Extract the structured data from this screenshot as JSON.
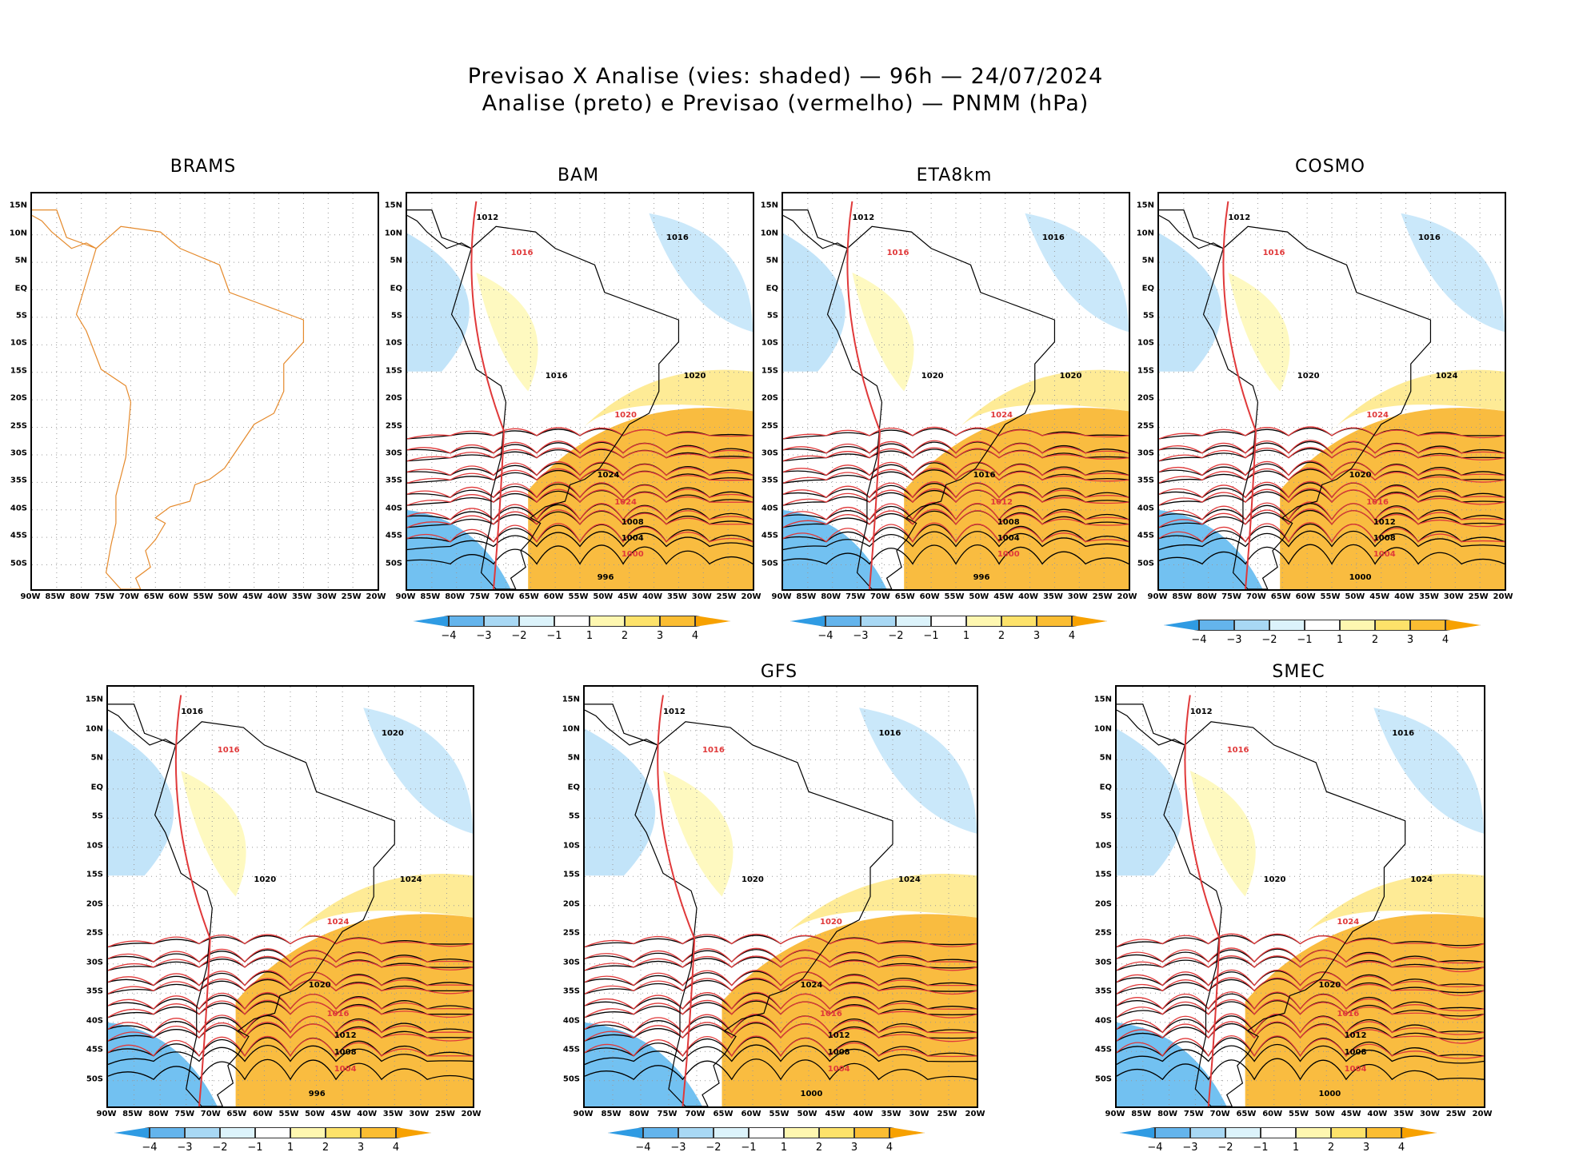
{
  "title": {
    "line1": "Previsao X Analise (vies: shaded) — 96h — 24/07/2024",
    "line2": "Analise (preto) e Previsao (vermelho) — PNMM (hPa)"
  },
  "axes": {
    "lat_labels": [
      "15N",
      "10N",
      "5N",
      "EQ",
      "5S",
      "10S",
      "15S",
      "20S",
      "25S",
      "30S",
      "35S",
      "40S",
      "45S",
      "50S"
    ],
    "lon_labels": [
      "90W",
      "85W",
      "80W",
      "75W",
      "70W",
      "65W",
      "60W",
      "55W",
      "50W",
      "45W",
      "40W",
      "35W",
      "30W",
      "25W",
      "20W"
    ]
  },
  "colorbar": {
    "labels": [
      "−4",
      "−3",
      "−2",
      "−1",
      "1",
      "2",
      "3",
      "4"
    ],
    "colors": [
      "#2f9be3",
      "#64b4ec",
      "#a8d8f4",
      "#dcf3fb",
      "#ffffff",
      "#fef7b0",
      "#fde26a",
      "#fbbd32",
      "#f7a100"
    ]
  },
  "colors": {
    "analysis_isobar": "#000000",
    "forecast_isobar": "#e0393a",
    "coastline": "#e58a2c",
    "positive_bias": "#f7a600",
    "negative_bias": "#4fb2ee"
  },
  "panels": [
    {
      "id": "brams",
      "title": "BRAMS",
      "isobars": []
    },
    {
      "id": "bam",
      "title": "BAM",
      "isobars": [
        "1012",
        "1016",
        "1016",
        "1016",
        "1020",
        "1020",
        "1024",
        "1024",
        "1008",
        "1004",
        "1000",
        "996"
      ]
    },
    {
      "id": "eta8km",
      "title": "ETA8km",
      "isobars": [
        "1012",
        "1016",
        "1016",
        "1020",
        "1024",
        "1020",
        "1016",
        "1012",
        "1008",
        "1004",
        "1000",
        "996"
      ]
    },
    {
      "id": "cosmo",
      "title": "COSMO",
      "isobars": [
        "1012",
        "1016",
        "1016",
        "1020",
        "1024",
        "1024",
        "1020",
        "1016",
        "1012",
        "1008",
        "1004",
        "1000"
      ]
    },
    {
      "id": "blank",
      "title": "",
      "isobars": [
        "1016",
        "1016",
        "1020",
        "1020",
        "1024",
        "1024",
        "1020",
        "1016",
        "1012",
        "1008",
        "1004",
        "996"
      ]
    },
    {
      "id": "gfs",
      "title": "GFS",
      "isobars": [
        "1012",
        "1016",
        "1016",
        "1020",
        "1020",
        "1024",
        "1024",
        "1016",
        "1012",
        "1008",
        "1004",
        "1000"
      ]
    },
    {
      "id": "smec",
      "title": "SMEC",
      "isobars": [
        "1012",
        "1016",
        "1016",
        "1020",
        "1024",
        "1024",
        "1020",
        "1016",
        "1012",
        "1008",
        "1004",
        "1000"
      ]
    }
  ]
}
